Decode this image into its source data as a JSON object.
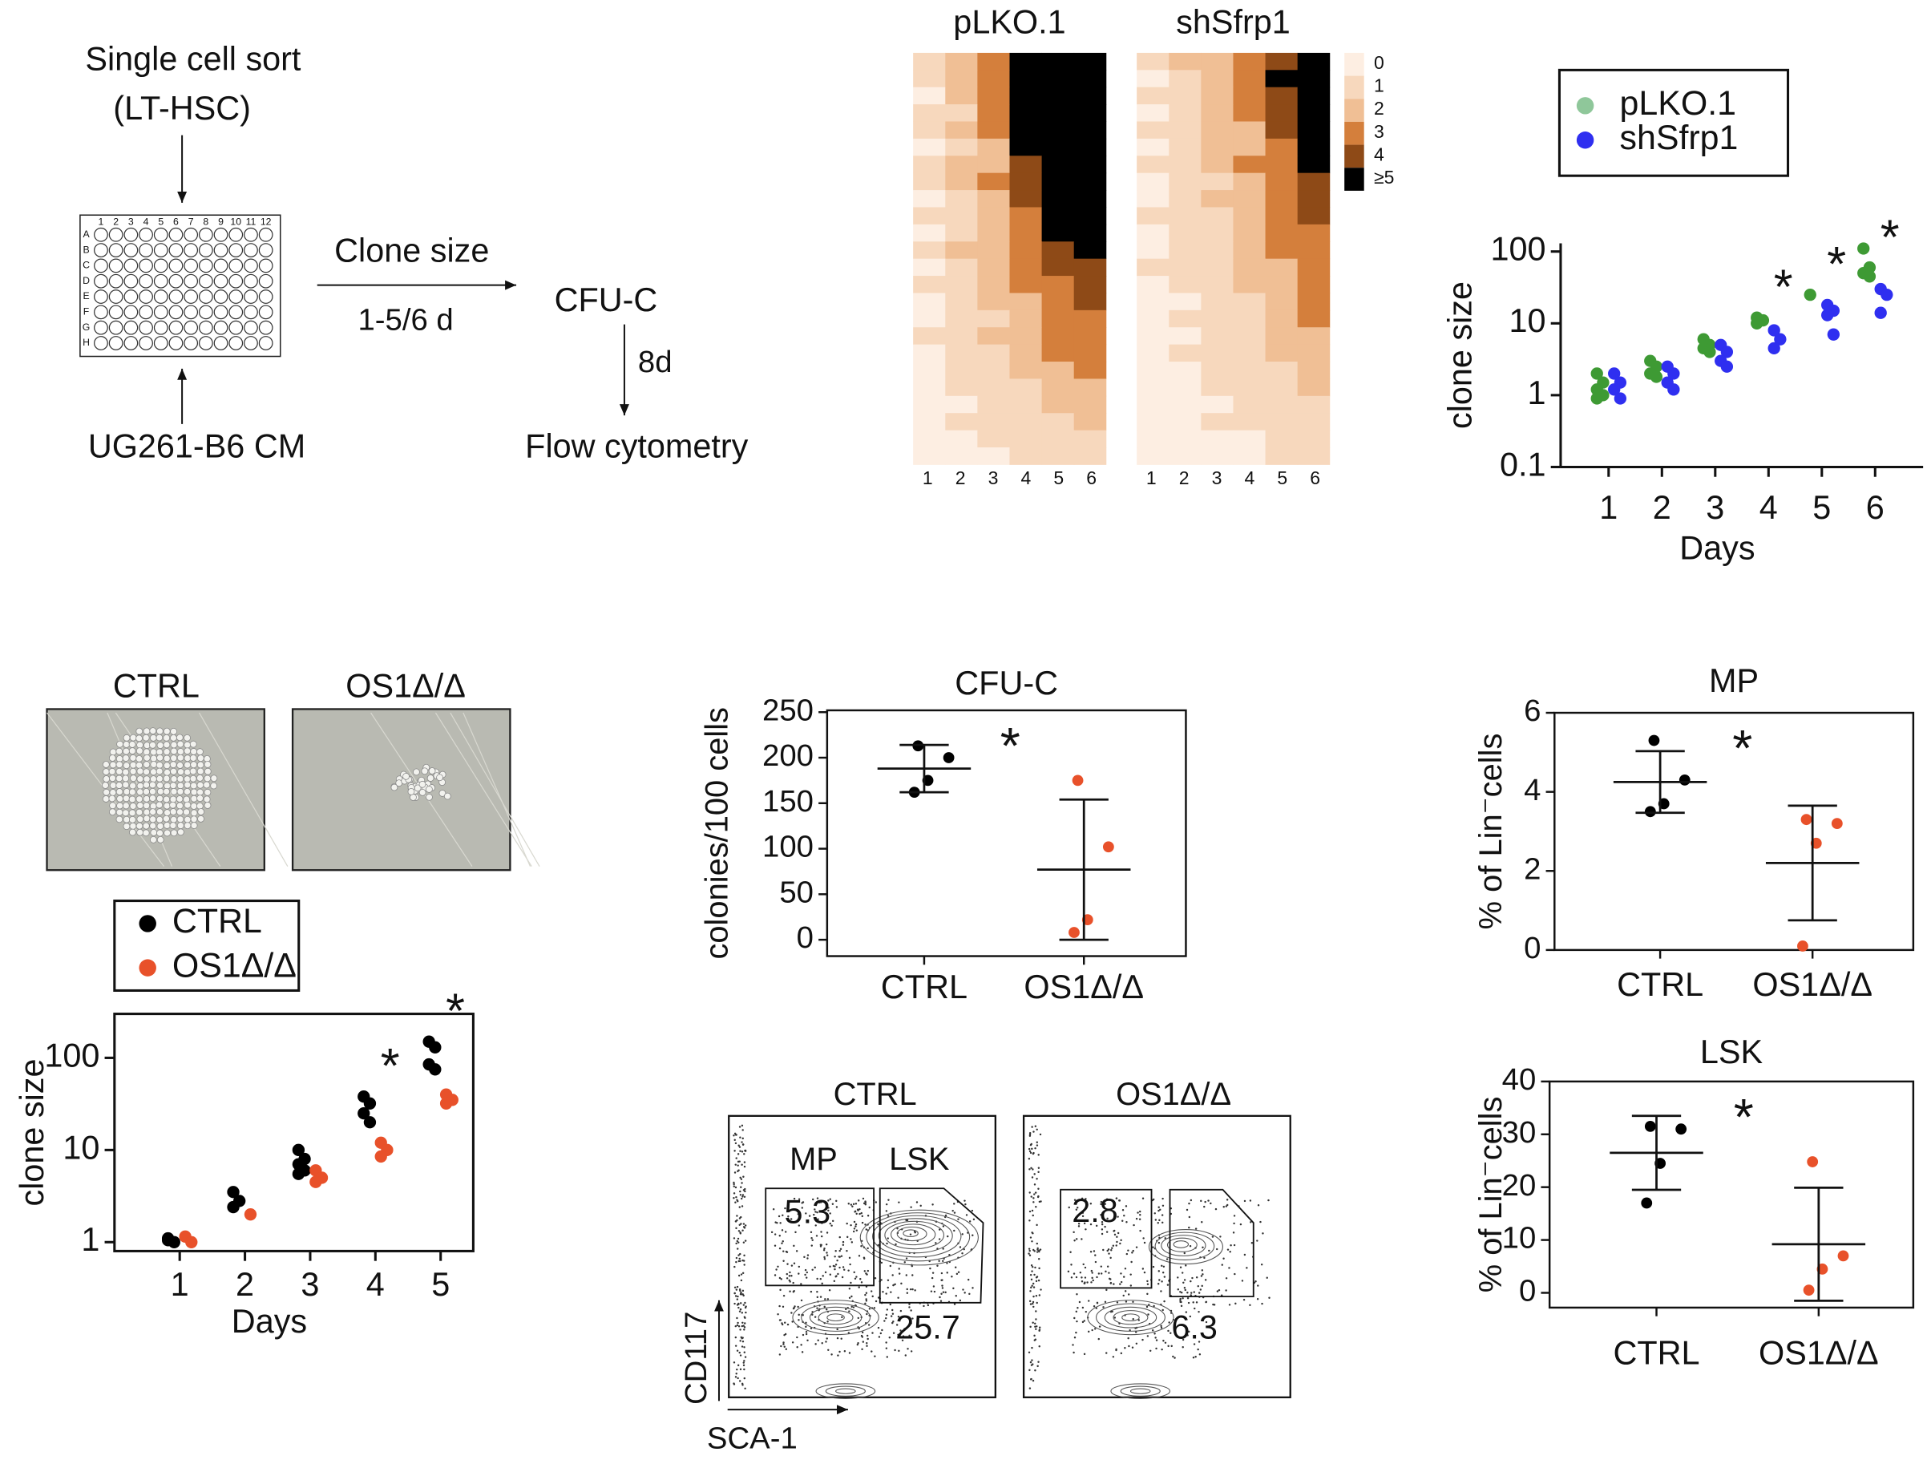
{
  "diagram": {
    "sort_line1": "Single cell sort",
    "sort_line2": "(LT-HSC)",
    "medium": "UG261-B6 CM",
    "plate_rows": [
      "A",
      "B",
      "C",
      "D",
      "E",
      "F",
      "G",
      "H"
    ],
    "plate_cols": [
      "1",
      "2",
      "3",
      "4",
      "5",
      "6",
      "7",
      "8",
      "9",
      "10",
      "11",
      "12"
    ],
    "arrow_top": "Clone size",
    "arrow_bottom": "1-5/6 d",
    "cfu": "CFU-C",
    "arrow_down": "8d",
    "flow": "Flow cytometry"
  },
  "photos": {
    "labels": [
      "CTRL",
      "OS1Δ/Δ"
    ]
  },
  "flow": {
    "titles": [
      "CTRL",
      "OS1Δ/Δ"
    ],
    "gates": [
      "MP",
      "LSK"
    ],
    "values": [
      [
        5.3,
        25.7
      ],
      [
        2.8,
        6.3
      ]
    ],
    "ylabel": "CD117",
    "xlabel": "SCA-1"
  },
  "chart_data": [
    {
      "type": "heatmap",
      "x": [
        1,
        2,
        3,
        4,
        5,
        6
      ],
      "colors": [
        "#fdeee2",
        "#f7d8bd",
        "#f0bf95",
        "#d47f3c",
        "#8e4a17",
        "#000000"
      ],
      "colorbar_ticks": [
        0,
        1,
        2,
        3,
        4,
        {
          "value": 5,
          "label": "≥5"
        }
      ],
      "groups": [
        {
          "name": "pLKO.1",
          "rows": [
            [
              1,
              2,
              3,
              5,
              5,
              5
            ],
            [
              1,
              2,
              3,
              5,
              5,
              5
            ],
            [
              0,
              2,
              3,
              5,
              5,
              5
            ],
            [
              1,
              1,
              3,
              5,
              5,
              5
            ],
            [
              1,
              2,
              3,
              5,
              5,
              5
            ],
            [
              0,
              1,
              2,
              5,
              5,
              5
            ],
            [
              1,
              2,
              2,
              4,
              5,
              5
            ],
            [
              1,
              2,
              3,
              4,
              5,
              5
            ],
            [
              0,
              1,
              2,
              4,
              5,
              5
            ],
            [
              1,
              1,
              2,
              3,
              5,
              5
            ],
            [
              0,
              1,
              2,
              3,
              5,
              5
            ],
            [
              1,
              2,
              2,
              3,
              4,
              5
            ],
            [
              0,
              1,
              2,
              3,
              4,
              4
            ],
            [
              1,
              1,
              2,
              3,
              3,
              4
            ],
            [
              0,
              1,
              2,
              2,
              3,
              4
            ],
            [
              0,
              1,
              1,
              2,
              3,
              3
            ],
            [
              1,
              1,
              2,
              2,
              3,
              3
            ],
            [
              0,
              1,
              1,
              2,
              3,
              3
            ],
            [
              0,
              1,
              1,
              2,
              2,
              3
            ],
            [
              0,
              1,
              1,
              1,
              2,
              2
            ],
            [
              0,
              0,
              1,
              1,
              2,
              2
            ],
            [
              0,
              1,
              1,
              1,
              1,
              2
            ],
            [
              0,
              0,
              1,
              1,
              1,
              1
            ],
            [
              0,
              0,
              0,
              1,
              1,
              1
            ]
          ]
        },
        {
          "name": "shSfrp1",
          "rows": [
            [
              1,
              2,
              2,
              3,
              4,
              5
            ],
            [
              0,
              1,
              2,
              3,
              5,
              5
            ],
            [
              1,
              1,
              2,
              3,
              4,
              5
            ],
            [
              0,
              1,
              2,
              3,
              4,
              5
            ],
            [
              1,
              1,
              2,
              2,
              4,
              5
            ],
            [
              0,
              1,
              2,
              2,
              3,
              5
            ],
            [
              1,
              1,
              2,
              3,
              3,
              5
            ],
            [
              0,
              1,
              1,
              2,
              3,
              4
            ],
            [
              0,
              1,
              2,
              2,
              3,
              4
            ],
            [
              1,
              1,
              1,
              2,
              3,
              4
            ],
            [
              0,
              1,
              1,
              2,
              3,
              3
            ],
            [
              0,
              1,
              1,
              2,
              3,
              3
            ],
            [
              1,
              1,
              1,
              2,
              2,
              3
            ],
            [
              0,
              1,
              1,
              2,
              2,
              3
            ],
            [
              0,
              0,
              1,
              1,
              2,
              3
            ],
            [
              0,
              1,
              1,
              1,
              2,
              3
            ],
            [
              0,
              0,
              1,
              1,
              2,
              2
            ],
            [
              0,
              1,
              1,
              1,
              2,
              2
            ],
            [
              0,
              0,
              1,
              1,
              1,
              2
            ],
            [
              0,
              0,
              1,
              1,
              1,
              2
            ],
            [
              0,
              0,
              0,
              1,
              1,
              1
            ],
            [
              0,
              0,
              1,
              1,
              1,
              1
            ],
            [
              0,
              0,
              0,
              0,
              1,
              1
            ],
            [
              0,
              0,
              0,
              0,
              1,
              1
            ]
          ]
        }
      ]
    },
    {
      "type": "scatter",
      "log_y": true,
      "ylabel": "clone size",
      "xlabel": "Days",
      "xlim": [
        0.1,
        6.9
      ],
      "xticks": [
        1,
        2,
        3,
        4,
        5,
        6
      ],
      "ylim": [
        0.1,
        130
      ],
      "yticks": [
        0.1,
        1,
        10,
        100
      ],
      "series": [
        {
          "name": "pLKO.1",
          "color": "#3e9a34",
          "legend_color": "#8fc79a",
          "x": [
            1,
            1,
            1,
            1,
            1,
            2,
            2,
            2,
            2,
            3,
            3,
            3,
            3,
            4,
            4,
            4,
            5,
            6,
            6,
            6,
            6
          ],
          "values": [
            2,
            1.5,
            1.2,
            1,
            0.9,
            3,
            2.5,
            2,
            1.8,
            6,
            5,
            4.5,
            4,
            12,
            11,
            10,
            25,
            110,
            60,
            50,
            45
          ]
        },
        {
          "name": "shSfrp1",
          "color": "#2f2ff0",
          "legend_color": "#2f2ff0",
          "x": [
            1,
            1,
            1,
            1,
            2,
            2,
            2,
            2,
            3,
            3,
            3,
            3,
            4,
            4,
            4,
            5,
            5,
            5,
            5,
            6,
            6,
            6
          ],
          "values": [
            2,
            1.5,
            1.2,
            0.9,
            2.5,
            2,
            1.5,
            1.2,
            5,
            4,
            3,
            2.5,
            8,
            6,
            4.5,
            18,
            15,
            13,
            7,
            30,
            25,
            14
          ]
        }
      ],
      "annotations": [
        {
          "text": "*",
          "x": 4
        },
        {
          "text": "*",
          "x": 5
        },
        {
          "text": "*",
          "x": 6
        }
      ]
    },
    {
      "type": "dot",
      "title": "CFU-C",
      "ylabel": "colonies/100 cells",
      "categories": [
        "CTRL",
        "OS1Δ/Δ"
      ],
      "ylim": [
        -18,
        252
      ],
      "yticks": [
        0,
        50,
        100,
        150,
        200,
        250
      ],
      "annotation": "*",
      "groups": [
        {
          "color": "#000000",
          "values": [
            213,
            200,
            175,
            162
          ],
          "mean": 188,
          "sd": 26
        },
        {
          "color": "#e8512a",
          "values": [
            175,
            102,
            22,
            8
          ],
          "mean": 77,
          "sd": 77
        }
      ]
    },
    {
      "type": "dot",
      "title": "MP",
      "ylabel": "% of Lin⁻cells",
      "categories": [
        "CTRL",
        "OS1Δ/Δ"
      ],
      "ylim": [
        0,
        6
      ],
      "yticks": [
        0,
        2,
        4,
        6
      ],
      "annotation": "*",
      "groups": [
        {
          "color": "#000000",
          "values": [
            5.3,
            4.3,
            3.7,
            3.5
          ],
          "mean": 4.25,
          "sd": 0.78
        },
        {
          "color": "#e8512a",
          "values": [
            3.3,
            3.2,
            2.7,
            0.1
          ],
          "mean": 2.2,
          "sd": 1.45
        }
      ]
    },
    {
      "type": "dot",
      "title": "LSK",
      "ylabel": "% of Lin⁻cells",
      "categories": [
        "CTRL",
        "OS1Δ/Δ"
      ],
      "ylim": [
        -2.8,
        40
      ],
      "yticks": [
        0,
        10,
        20,
        30,
        40
      ],
      "annotation": "*",
      "groups": [
        {
          "color": "#000000",
          "values": [
            31.5,
            31,
            24.5,
            17
          ],
          "mean": 26.5,
          "sd": 7
        },
        {
          "color": "#e8512a",
          "values": [
            24.8,
            7,
            4.5,
            0.5
          ],
          "mean": 9.2,
          "sd": 10.7
        }
      ]
    },
    {
      "type": "scatter",
      "log_y": true,
      "ylabel": "clone size",
      "xlabel": "Days",
      "xlim": [
        0,
        5.5
      ],
      "xticks": [
        1,
        2,
        3,
        4,
        5
      ],
      "ylim": [
        0.8,
        300
      ],
      "yticks": [
        1,
        10,
        100
      ],
      "series": [
        {
          "name": "CTRL",
          "color": "#000000",
          "legend_color": "#000000",
          "x": [
            1,
            1,
            1,
            2,
            2,
            2,
            3,
            3,
            3,
            3,
            3,
            4,
            4,
            4,
            4,
            5,
            5,
            5,
            5
          ],
          "values": [
            1.1,
            1,
            1.05,
            3.5,
            2.8,
            2.4,
            10,
            8,
            7,
            6,
            5.5,
            38,
            32,
            25,
            20,
            150,
            130,
            85,
            75
          ]
        },
        {
          "name": "OS1Δ/Δ",
          "color": "#e8512a",
          "legend_color": "#e8512a",
          "x": [
            1,
            1,
            2,
            3,
            3,
            3,
            4,
            4,
            4,
            5,
            5,
            5
          ],
          "values": [
            1.15,
            1,
            2,
            6,
            5,
            4.5,
            12,
            10,
            8.5,
            40,
            35,
            32
          ]
        }
      ],
      "annotations": [
        {
          "text": "*",
          "x": 4
        },
        {
          "text": "*",
          "x": 5
        }
      ]
    }
  ]
}
